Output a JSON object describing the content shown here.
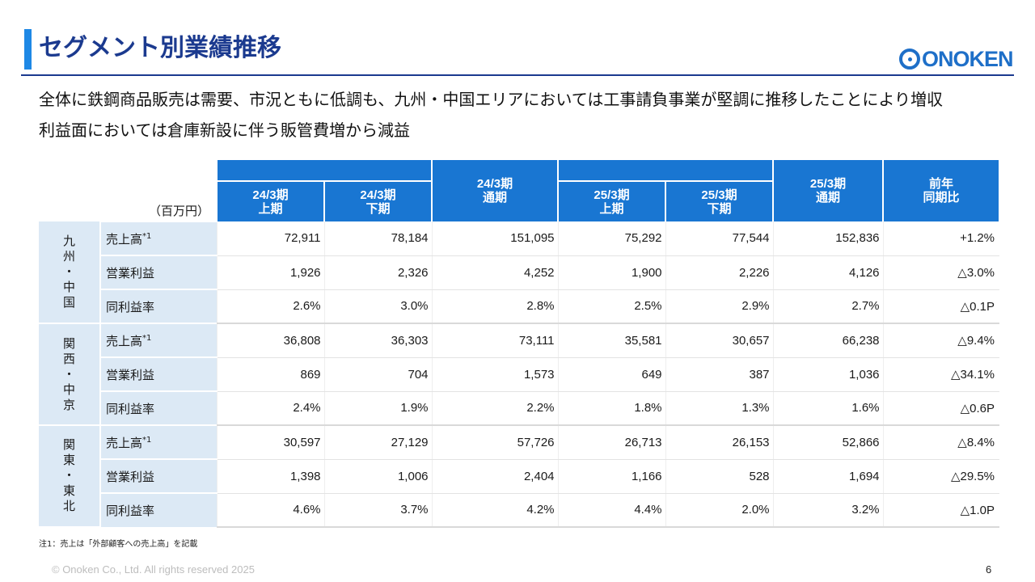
{
  "header": {
    "title": "セグメント別業績推移",
    "logo_text": "ONOKEN",
    "brand_color": "#1e6fc8",
    "accent_color": "#1b3a8f"
  },
  "summary": {
    "line1": "全体に鉄鋼商品販売は需要、市況ともに低調も、九州・中国エリアにおいては工事請負事業が堅調に推移したことにより増収",
    "line2": "利益面においては倉庫新設に伴う販管費増から減益"
  },
  "table": {
    "unit": "（百万円）",
    "columns": {
      "c1": "24/3期\n上期",
      "c2": "24/3期\n下期",
      "c3": "24/3期\n通期",
      "c4": "25/3期\n上期",
      "c5": "25/3期\n下期",
      "c6": "25/3期\n通期",
      "c7": "前年\n同期比"
    },
    "regions": [
      {
        "chars": [
          "九",
          "州",
          "・",
          "中",
          "国"
        ],
        "rows": [
          {
            "label": "売上高",
            "note": "*1",
            "values": [
              "72,911",
              "78,184",
              "151,095",
              "75,292",
              "77,544",
              "152,836",
              "+1.2%"
            ]
          },
          {
            "label": "営業利益",
            "note": "",
            "values": [
              "1,926",
              "2,326",
              "4,252",
              "1,900",
              "2,226",
              "4,126",
              "△3.0%"
            ]
          },
          {
            "label": "同利益率",
            "note": "",
            "values": [
              "2.6%",
              "3.0%",
              "2.8%",
              "2.5%",
              "2.9%",
              "2.7%",
              "△0.1P"
            ]
          }
        ]
      },
      {
        "chars": [
          "関",
          "西",
          "・",
          "中",
          "京"
        ],
        "rows": [
          {
            "label": "売上高",
            "note": "*1",
            "values": [
              "36,808",
              "36,303",
              "73,111",
              "35,581",
              "30,657",
              "66,238",
              "△9.4%"
            ]
          },
          {
            "label": "営業利益",
            "note": "",
            "values": [
              "869",
              "704",
              "1,573",
              "649",
              "387",
              "1,036",
              "△34.1%"
            ]
          },
          {
            "label": "同利益率",
            "note": "",
            "values": [
              "2.4%",
              "1.9%",
              "2.2%",
              "1.8%",
              "1.3%",
              "1.6%",
              "△0.6P"
            ]
          }
        ]
      },
      {
        "chars": [
          "関",
          "東",
          "・",
          "東",
          "北"
        ],
        "rows": [
          {
            "label": "売上高",
            "note": "*1",
            "values": [
              "30,597",
              "27,129",
              "57,726",
              "26,713",
              "26,153",
              "52,866",
              "△8.4%"
            ]
          },
          {
            "label": "営業利益",
            "note": "",
            "values": [
              "1,398",
              "1,006",
              "2,404",
              "1,166",
              "528",
              "1,694",
              "△29.5%"
            ]
          },
          {
            "label": "同利益率",
            "note": "",
            "values": [
              "4.6%",
              "3.7%",
              "4.2%",
              "4.4%",
              "2.0%",
              "3.2%",
              "△1.0P"
            ]
          }
        ]
      }
    ],
    "header_color": "#1976d2",
    "label_bg_color": "#dce9f5"
  },
  "footer": {
    "footnote": "注1：売上は「外部顧客への売上高」を記載",
    "copyright": "© Onoken Co., Ltd. All rights reserved 2025",
    "page_number": "6"
  }
}
